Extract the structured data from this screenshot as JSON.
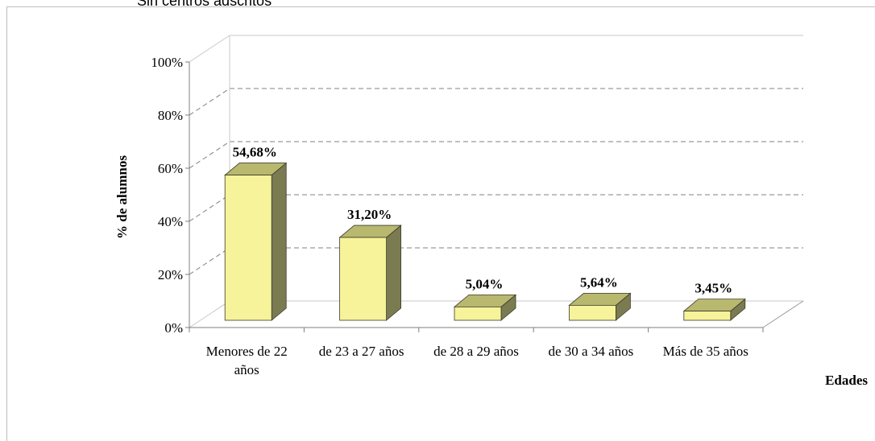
{
  "header": {
    "title": "Sin centros adscritos"
  },
  "chart_data": {
    "type": "bar",
    "three_d": true,
    "categories": [
      [
        "Menores de 22",
        "años"
      ],
      [
        "de 23 a 27 años"
      ],
      [
        "de 28 a 29 años"
      ],
      [
        "de 30 a 34 años"
      ],
      [
        "Más de 35 años"
      ]
    ],
    "values": [
      54.68,
      31.2,
      5.04,
      5.64,
      3.45
    ],
    "data_labels": [
      "54,68%",
      "31,20%",
      "5,04%",
      "5,64%",
      "3,45%"
    ],
    "yticks": [
      "0%",
      "20%",
      "40%",
      "60%",
      "80%",
      "100%"
    ],
    "ylim": [
      0,
      100
    ],
    "xlabel": "Edades",
    "ylabel": "% de alumnos",
    "grid": true,
    "legend": "none",
    "colors": {
      "bar_front": "#f6f39a",
      "bar_top": "#b9b86f",
      "bar_side": "#7b7b52",
      "edge": "#3a3a2a",
      "grid": "#808080",
      "axis": "#7f7f7f"
    }
  }
}
